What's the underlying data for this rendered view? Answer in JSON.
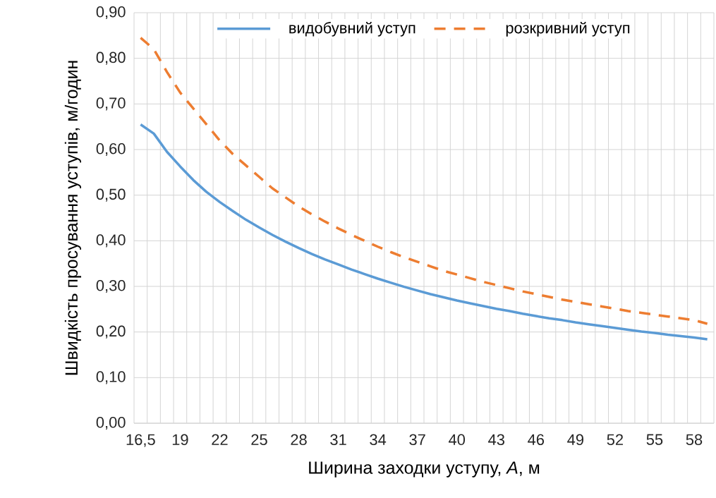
{
  "chart_data": {
    "type": "line",
    "xlabel": "Ширина заходки  уступу, *A*, м",
    "ylabel": "Швидкість просування  уступів, м/годин",
    "categories": [
      "16,5",
      null,
      null,
      "19",
      null,
      null,
      "22",
      null,
      null,
      "25",
      null,
      null,
      "28",
      null,
      null,
      "31",
      null,
      null,
      "34",
      null,
      null,
      "37",
      null,
      null,
      "40",
      null,
      null,
      "43",
      null,
      null,
      "46",
      null,
      null,
      "49",
      null,
      null,
      "52",
      null,
      null,
      "55",
      null,
      null,
      "58",
      null
    ],
    "series": [
      {
        "name": "видобувний уступ",
        "color": "#5b9bd5",
        "line_style": "solid",
        "values": [
          0.655,
          0.635,
          0.595,
          0.563,
          0.533,
          0.507,
          0.485,
          0.465,
          0.446,
          0.429,
          0.413,
          0.398,
          0.384,
          0.371,
          0.359,
          0.348,
          0.337,
          0.327,
          0.317,
          0.308,
          0.299,
          0.291,
          0.283,
          0.276,
          0.269,
          0.263,
          0.257,
          0.251,
          0.246,
          0.24,
          0.235,
          0.23,
          0.226,
          0.221,
          0.217,
          0.213,
          0.209,
          0.205,
          0.201,
          0.198,
          0.194,
          0.191,
          0.188,
          0.184
        ]
      },
      {
        "name": "розкривний уступ",
        "color": "#ed7d31",
        "line_style": "dashed",
        "values": [
          0.845,
          0.82,
          0.77,
          0.725,
          0.69,
          0.655,
          0.62,
          0.59,
          0.565,
          0.54,
          0.515,
          0.495,
          0.475,
          0.458,
          0.442,
          0.427,
          0.413,
          0.4,
          0.387,
          0.375,
          0.364,
          0.354,
          0.344,
          0.334,
          0.326,
          0.318,
          0.31,
          0.303,
          0.296,
          0.289,
          0.283,
          0.277,
          0.271,
          0.266,
          0.261,
          0.256,
          0.251,
          0.246,
          0.242,
          0.238,
          0.234,
          0.23,
          0.226,
          0.218
        ]
      }
    ],
    "ylim": [
      0,
      0.9
    ],
    "yticks": [
      {
        "value": 0,
        "label": "0,00"
      },
      {
        "value": 0.1,
        "label": "0,10"
      },
      {
        "value": 0.2,
        "label": "0,20"
      },
      {
        "value": 0.3,
        "label": "0,30"
      },
      {
        "value": 0.4,
        "label": "0,40"
      },
      {
        "value": 0.5,
        "label": "0,50"
      },
      {
        "value": 0.6,
        "label": "0,60"
      },
      {
        "value": 0.7,
        "label": "0,70"
      },
      {
        "value": 0.8,
        "label": "0,80"
      },
      {
        "value": 0.9,
        "label": "0,90"
      }
    ],
    "grid": true,
    "legend": "top"
  }
}
